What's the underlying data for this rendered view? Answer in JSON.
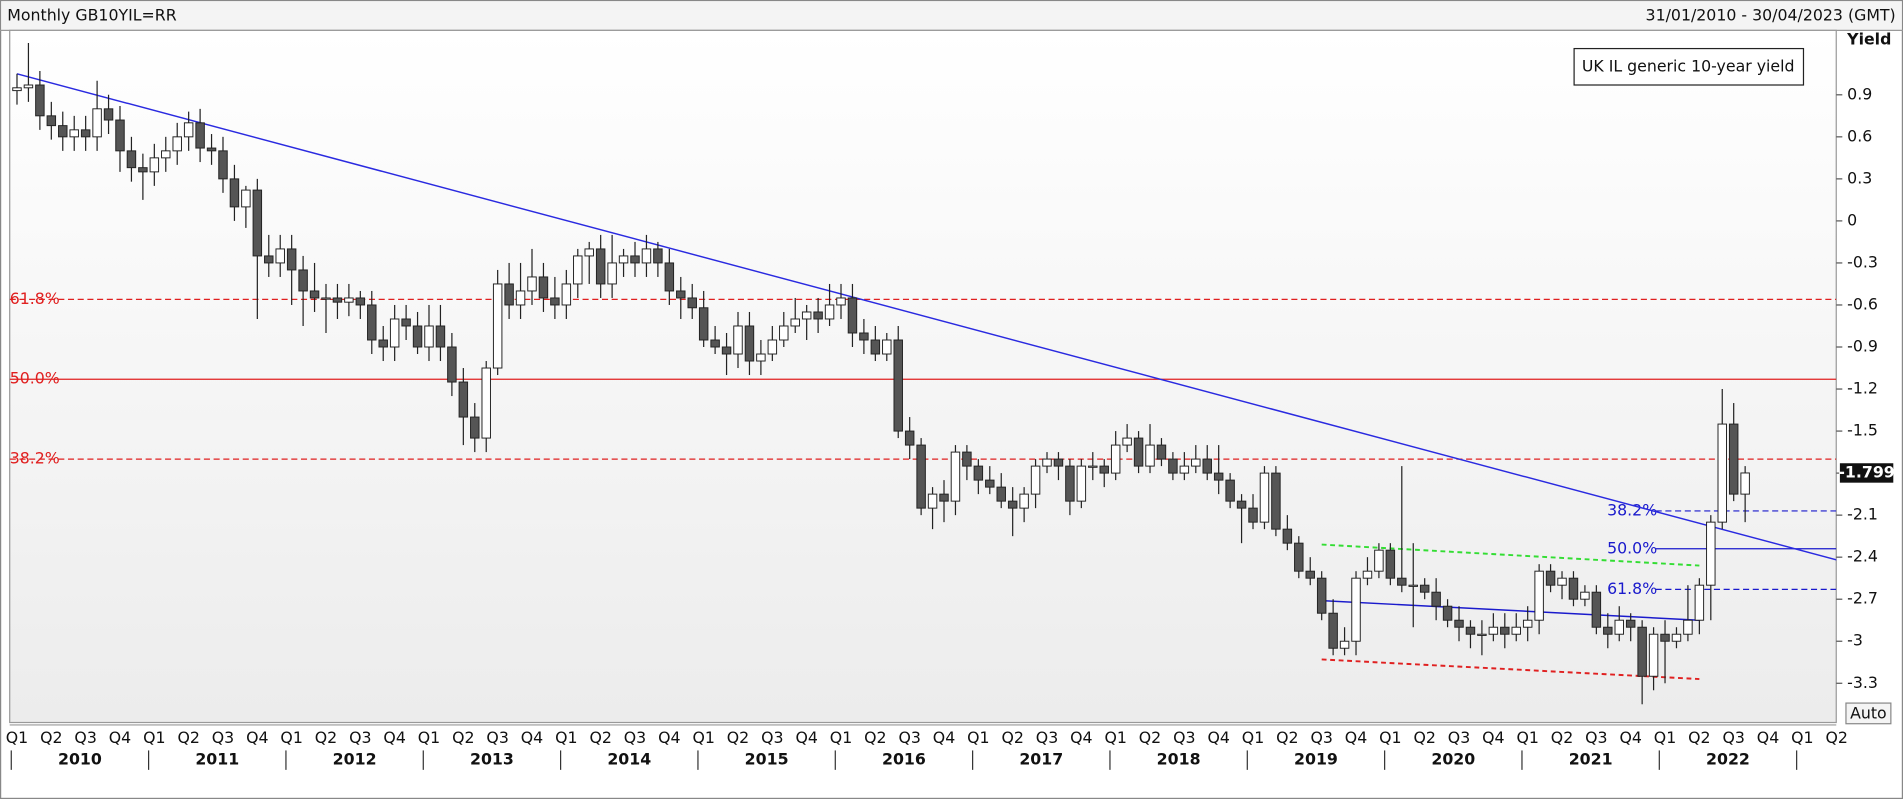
{
  "chart_data": {
    "type": "candlestick",
    "title": "Monthly GB10YIL=RR",
    "date_range": "31/01/2010 - 30/04/2023 (GMT)",
    "y_axis_label": "Yield",
    "legend_label": "UK IL generic 10-year yield",
    "auto_button": "Auto",
    "ylim": [
      -3.58,
      1.36
    ],
    "yticks": [
      0.9,
      0.6,
      0.3,
      0,
      -0.3,
      -0.6,
      -0.9,
      -1.2,
      -1.5,
      -1.8,
      -2.1,
      -2.4,
      -2.7,
      -3,
      -3.3
    ],
    "up_color": "#ffffff",
    "down_color": "#555555",
    "categories": [
      "Q1",
      null,
      null,
      "Q2",
      null,
      null,
      "Q3",
      null,
      null,
      "Q4",
      null,
      null,
      "Q1",
      null,
      null,
      "Q2",
      null,
      null,
      "Q3",
      null,
      null,
      "Q4",
      null,
      null,
      "Q1",
      null,
      null,
      "Q2",
      null,
      null,
      "Q3",
      null,
      null,
      "Q4",
      null,
      null,
      "Q1",
      null,
      null,
      "Q2",
      null,
      null,
      "Q3",
      null,
      null,
      "Q4",
      null,
      null,
      "Q1",
      null,
      null,
      "Q2",
      null,
      null,
      "Q3",
      null,
      null,
      "Q4",
      null,
      null,
      "Q1",
      null,
      null,
      "Q2",
      null,
      null,
      "Q3",
      null,
      null,
      "Q4",
      null,
      null,
      "Q1",
      null,
      null,
      "Q2",
      null,
      null,
      "Q3",
      null,
      null,
      "Q4",
      null,
      null,
      "Q1",
      null,
      null,
      "Q2",
      null,
      null,
      "Q3",
      null,
      null,
      "Q4",
      null,
      null,
      "Q1",
      null,
      null,
      "Q2",
      null,
      null,
      "Q3",
      null,
      null,
      "Q4",
      null,
      null,
      "Q1",
      null,
      null,
      "Q2",
      null,
      null,
      "Q3",
      null,
      null,
      "Q4",
      null,
      null,
      "Q1",
      null,
      null,
      "Q2",
      null,
      null,
      "Q3",
      null,
      null,
      "Q4",
      null,
      null,
      "Q1",
      null,
      null,
      "Q2",
      null,
      null,
      "Q3",
      null,
      null,
      "Q4",
      null,
      null,
      "Q1",
      null,
      null,
      "Q2",
      null,
      null,
      "Q3",
      null,
      null,
      "Q4",
      null,
      null,
      "Q1",
      null,
      null,
      "Q2"
    ],
    "years": [
      "2010",
      "2011",
      "2012",
      "2013",
      "2014",
      "2015",
      "2016",
      "2017",
      "2018",
      "2019",
      "2020",
      "2021",
      "2022"
    ],
    "values": [
      [
        0.93,
        1.05,
        0.83,
        0.95
      ],
      [
        0.95,
        1.27,
        0.85,
        0.97
      ],
      [
        0.97,
        1.07,
        0.65,
        0.75
      ],
      [
        0.75,
        0.85,
        0.58,
        0.68
      ],
      [
        0.68,
        0.78,
        0.5,
        0.6
      ],
      [
        0.6,
        0.75,
        0.5,
        0.65
      ],
      [
        0.65,
        0.75,
        0.5,
        0.6
      ],
      [
        0.6,
        1.0,
        0.5,
        0.8
      ],
      [
        0.8,
        0.9,
        0.62,
        0.72
      ],
      [
        0.72,
        0.82,
        0.35,
        0.5
      ],
      [
        0.5,
        0.6,
        0.28,
        0.38
      ],
      [
        0.38,
        0.48,
        0.15,
        0.35
      ],
      [
        0.35,
        0.55,
        0.25,
        0.45
      ],
      [
        0.45,
        0.6,
        0.35,
        0.5
      ],
      [
        0.5,
        0.7,
        0.4,
        0.6
      ],
      [
        0.6,
        0.78,
        0.5,
        0.7
      ],
      [
        0.7,
        0.8,
        0.42,
        0.52
      ],
      [
        0.52,
        0.62,
        0.4,
        0.5
      ],
      [
        0.5,
        0.6,
        0.2,
        0.3
      ],
      [
        0.3,
        0.4,
        0.0,
        0.1
      ],
      [
        0.1,
        0.25,
        -0.05,
        0.22
      ],
      [
        0.22,
        0.3,
        -0.7,
        -0.25
      ],
      [
        -0.25,
        -0.1,
        -0.4,
        -0.3
      ],
      [
        -0.3,
        -0.1,
        -0.4,
        -0.2
      ],
      [
        -0.2,
        -0.1,
        -0.6,
        -0.35
      ],
      [
        -0.35,
        -0.25,
        -0.75,
        -0.5
      ],
      [
        -0.5,
        -0.3,
        -0.65,
        -0.55
      ],
      [
        -0.55,
        -0.45,
        -0.8,
        -0.55
      ],
      [
        -0.55,
        -0.45,
        -0.7,
        -0.58
      ],
      [
        -0.58,
        -0.45,
        -0.68,
        -0.55
      ],
      [
        -0.55,
        -0.5,
        -0.7,
        -0.6
      ],
      [
        -0.6,
        -0.5,
        -0.95,
        -0.85
      ],
      [
        -0.85,
        -0.75,
        -1.0,
        -0.9
      ],
      [
        -0.9,
        -0.6,
        -1.0,
        -0.7
      ],
      [
        -0.7,
        -0.6,
        -0.85,
        -0.75
      ],
      [
        -0.75,
        -0.65,
        -0.95,
        -0.9
      ],
      [
        -0.9,
        -0.6,
        -1.0,
        -0.75
      ],
      [
        -0.75,
        -0.6,
        -1.0,
        -0.9
      ],
      [
        -0.9,
        -0.8,
        -1.25,
        -1.15
      ],
      [
        -1.15,
        -1.05,
        -1.6,
        -1.4
      ],
      [
        -1.4,
        -1.3,
        -1.65,
        -1.55
      ],
      [
        -1.55,
        -1.0,
        -1.65,
        -1.05
      ],
      [
        -1.05,
        -0.35,
        -1.1,
        -0.45
      ],
      [
        -0.45,
        -0.3,
        -0.7,
        -0.6
      ],
      [
        -0.6,
        -0.3,
        -0.7,
        -0.5
      ],
      [
        -0.5,
        -0.2,
        -0.6,
        -0.4
      ],
      [
        -0.4,
        -0.3,
        -0.65,
        -0.55
      ],
      [
        -0.55,
        -0.4,
        -0.7,
        -0.6
      ],
      [
        -0.6,
        -0.35,
        -0.7,
        -0.45
      ],
      [
        -0.45,
        -0.2,
        -0.55,
        -0.25
      ],
      [
        -0.25,
        -0.15,
        -0.45,
        -0.2
      ],
      [
        -0.2,
        -0.1,
        -0.55,
        -0.45
      ],
      [
        -0.45,
        -0.1,
        -0.55,
        -0.3
      ],
      [
        -0.3,
        -0.2,
        -0.4,
        -0.25
      ],
      [
        -0.25,
        -0.15,
        -0.4,
        -0.3
      ],
      [
        -0.3,
        -0.1,
        -0.4,
        -0.2
      ],
      [
        -0.2,
        -0.15,
        -0.4,
        -0.3
      ],
      [
        -0.3,
        -0.2,
        -0.6,
        -0.5
      ],
      [
        -0.5,
        -0.4,
        -0.7,
        -0.55
      ],
      [
        -0.55,
        -0.45,
        -0.7,
        -0.62
      ],
      [
        -0.62,
        -0.5,
        -0.9,
        -0.85
      ],
      [
        -0.85,
        -0.75,
        -0.95,
        -0.9
      ],
      [
        -0.9,
        -0.8,
        -1.1,
        -0.95
      ],
      [
        -0.95,
        -0.65,
        -1.05,
        -0.75
      ],
      [
        -0.75,
        -0.65,
        -1.1,
        -1.0
      ],
      [
        -1.0,
        -0.85,
        -1.1,
        -0.95
      ],
      [
        -0.95,
        -0.75,
        -1.0,
        -0.85
      ],
      [
        -0.85,
        -0.65,
        -0.9,
        -0.75
      ],
      [
        -0.75,
        -0.55,
        -0.8,
        -0.7
      ],
      [
        -0.7,
        -0.6,
        -0.85,
        -0.65
      ],
      [
        -0.65,
        -0.55,
        -0.8,
        -0.7
      ],
      [
        -0.7,
        -0.45,
        -0.75,
        -0.6
      ],
      [
        -0.6,
        -0.45,
        -0.7,
        -0.55
      ],
      [
        -0.55,
        -0.45,
        -0.9,
        -0.8
      ],
      [
        -0.8,
        -0.7,
        -0.95,
        -0.85
      ],
      [
        -0.85,
        -0.75,
        -1.0,
        -0.95
      ],
      [
        -0.95,
        -0.8,
        -1.0,
        -0.85
      ],
      [
        -0.85,
        -0.75,
        -1.55,
        -1.5
      ],
      [
        -1.5,
        -1.4,
        -1.7,
        -1.6
      ],
      [
        -1.6,
        -1.55,
        -2.1,
        -2.05
      ],
      [
        -2.05,
        -1.9,
        -2.2,
        -1.95
      ],
      [
        -1.95,
        -1.85,
        -2.15,
        -2.0
      ],
      [
        -2.0,
        -1.6,
        -2.1,
        -1.65
      ],
      [
        -1.65,
        -1.6,
        -1.85,
        -1.75
      ],
      [
        -1.75,
        -1.7,
        -1.95,
        -1.85
      ],
      [
        -1.85,
        -1.75,
        -1.95,
        -1.9
      ],
      [
        -1.9,
        -1.8,
        -2.05,
        -2.0
      ],
      [
        -2.0,
        -1.9,
        -2.25,
        -2.05
      ],
      [
        -2.05,
        -1.9,
        -2.15,
        -1.95
      ],
      [
        -1.95,
        -1.7,
        -2.05,
        -1.75
      ],
      [
        -1.75,
        -1.65,
        -1.8,
        -1.7
      ],
      [
        -1.7,
        -1.65,
        -1.85,
        -1.75
      ],
      [
        -1.75,
        -1.7,
        -2.1,
        -2.0
      ],
      [
        -2.0,
        -1.7,
        -2.05,
        -1.75
      ],
      [
        -1.75,
        -1.65,
        -1.85,
        -1.75
      ],
      [
        -1.75,
        -1.7,
        -1.9,
        -1.8
      ],
      [
        -1.8,
        -1.5,
        -1.85,
        -1.6
      ],
      [
        -1.6,
        -1.45,
        -1.65,
        -1.55
      ],
      [
        -1.55,
        -1.5,
        -1.8,
        -1.75
      ],
      [
        -1.75,
        -1.45,
        -1.8,
        -1.6
      ],
      [
        -1.6,
        -1.55,
        -1.75,
        -1.7
      ],
      [
        -1.7,
        -1.65,
        -1.85,
        -1.8
      ],
      [
        -1.8,
        -1.65,
        -1.85,
        -1.75
      ],
      [
        -1.75,
        -1.6,
        -1.8,
        -1.7
      ],
      [
        -1.7,
        -1.6,
        -1.85,
        -1.8
      ],
      [
        -1.8,
        -1.6,
        -1.95,
        -1.85
      ],
      [
        -1.85,
        -1.8,
        -2.05,
        -2.0
      ],
      [
        -2.0,
        -1.95,
        -2.3,
        -2.05
      ],
      [
        -2.05,
        -1.95,
        -2.2,
        -2.15
      ],
      [
        -2.15,
        -1.75,
        -2.2,
        -1.8
      ],
      [
        -1.8,
        -1.75,
        -2.25,
        -2.2
      ],
      [
        -2.2,
        -2.1,
        -2.35,
        -2.3
      ],
      [
        -2.3,
        -2.25,
        -2.55,
        -2.5
      ],
      [
        -2.5,
        -2.4,
        -2.6,
        -2.55
      ],
      [
        -2.55,
        -2.5,
        -2.85,
        -2.8
      ],
      [
        -2.8,
        -2.7,
        -3.1,
        -3.05
      ],
      [
        -3.05,
        -2.9,
        -3.1,
        -3.0
      ],
      [
        -3.0,
        -2.5,
        -3.1,
        -2.55
      ],
      [
        -2.55,
        -2.4,
        -2.6,
        -2.5
      ],
      [
        -2.5,
        -2.3,
        -2.55,
        -2.35
      ],
      [
        -2.35,
        -2.3,
        -2.6,
        -2.55
      ],
      [
        -2.55,
        -1.75,
        -2.65,
        -2.6
      ],
      [
        -2.6,
        -2.3,
        -2.9,
        -2.6
      ],
      [
        -2.6,
        -2.55,
        -2.7,
        -2.65
      ],
      [
        -2.65,
        -2.55,
        -2.85,
        -2.75
      ],
      [
        -2.75,
        -2.7,
        -2.9,
        -2.85
      ],
      [
        -2.85,
        -2.75,
        -3.0,
        -2.9
      ],
      [
        -2.9,
        -2.85,
        -3.05,
        -2.95
      ],
      [
        -2.95,
        -2.85,
        -3.1,
        -2.95
      ],
      [
        -2.95,
        -2.8,
        -3.0,
        -2.9
      ],
      [
        -2.9,
        -2.8,
        -3.05,
        -2.95
      ],
      [
        -2.95,
        -2.8,
        -3.0,
        -2.9
      ],
      [
        -2.9,
        -2.75,
        -3.0,
        -2.85
      ],
      [
        -2.85,
        -2.45,
        -2.95,
        -2.5
      ],
      [
        -2.5,
        -2.45,
        -2.65,
        -2.6
      ],
      [
        -2.6,
        -2.5,
        -2.7,
        -2.55
      ],
      [
        -2.55,
        -2.5,
        -2.75,
        -2.7
      ],
      [
        -2.7,
        -2.6,
        -2.75,
        -2.65
      ],
      [
        -2.65,
        -2.6,
        -2.95,
        -2.9
      ],
      [
        -2.9,
        -2.8,
        -3.05,
        -2.95
      ],
      [
        -2.95,
        -2.75,
        -3.0,
        -2.85
      ],
      [
        -2.85,
        -2.8,
        -3.0,
        -2.9
      ],
      [
        -2.9,
        -2.85,
        -3.45,
        -3.25
      ],
      [
        -3.25,
        -2.9,
        -3.35,
        -2.95
      ],
      [
        -2.95,
        -2.85,
        -3.3,
        -3.0
      ],
      [
        -3.0,
        -2.9,
        -3.05,
        -2.95
      ],
      [
        -2.95,
        -2.6,
        -3.0,
        -2.85
      ],
      [
        -2.85,
        -2.55,
        -2.95,
        -2.6
      ],
      [
        -2.6,
        -2.1,
        -2.85,
        -2.15
      ],
      [
        -2.15,
        -1.2,
        -2.2,
        -1.45
      ],
      [
        -1.45,
        -1.3,
        -2.0,
        -1.95
      ],
      [
        -1.95,
        -1.75,
        -2.15,
        -1.799
      ],
      null,
      null,
      null,
      null,
      null,
      null,
      null,
      null
    ],
    "fib_levels": [
      {
        "label": "61.8%",
        "value": -0.56,
        "color": "#e02020",
        "dashed": true,
        "from": 0
      },
      {
        "label": "50.0%",
        "value": -1.13,
        "color": "#e02020",
        "dashed": false,
        "from": 0
      },
      {
        "label": "38.2%",
        "value": -1.7,
        "color": "#e02020",
        "dashed": true,
        "from": 0
      },
      {
        "label": "38.2%",
        "value": -2.07,
        "color": "#1a1acc",
        "dashed": true,
        "from": 140
      },
      {
        "label": "50.0%",
        "value": -2.34,
        "color": "#1a1acc",
        "dashed": false,
        "from": 140
      },
      {
        "label": "61.8%",
        "value": -2.63,
        "color": "#1a1acc",
        "dashed": true,
        "from": 140
      }
    ],
    "trendlines": [
      {
        "color": "#2a2ae0",
        "dashed": false,
        "points": [
          [
            0,
            1.05
          ],
          [
            159,
            -2.42
          ]
        ]
      },
      {
        "color": "#33dd33",
        "dashed": true,
        "points": [
          [
            114,
            -2.31
          ],
          [
            147,
            -2.46
          ]
        ]
      },
      {
        "color": "#1a1acc",
        "dashed": false,
        "points": [
          [
            114,
            -2.71
          ],
          [
            147,
            -2.85
          ]
        ]
      },
      {
        "color": "#e02020",
        "dashed": true,
        "points": [
          [
            114,
            -3.13
          ],
          [
            147,
            -3.27
          ]
        ]
      }
    ]
  }
}
